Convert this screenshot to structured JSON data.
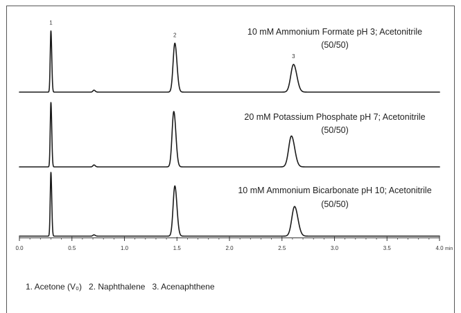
{
  "chart_data": {
    "type": "line",
    "xlim": [
      0,
      4.0
    ],
    "x_ticks": [
      "0.0",
      "0.5",
      "1.0",
      "1.5",
      "2.0",
      "2.5",
      "3.0",
      "3.5",
      "4.0"
    ],
    "xlabel": "min",
    "grid": false,
    "line_color": "#1a1a1a",
    "series": [
      {
        "label": [
          "10 mM Ammonium Formate pH 3; Acetonitrile",
          "(50/50)"
        ],
        "peaks": [
          {
            "t": 0.3,
            "h": 95
          },
          {
            "t": 0.71,
            "h": 3
          },
          {
            "t": 1.48,
            "h": 76
          },
          {
            "t": 2.61,
            "h": 43
          }
        ]
      },
      {
        "label": [
          "20 mM Potassium Phosphate pH 7; Acetonitrile",
          "(50/50)"
        ],
        "peaks": [
          {
            "t": 0.3,
            "h": 100
          },
          {
            "t": 0.71,
            "h": 3
          },
          {
            "t": 1.47,
            "h": 86
          },
          {
            "t": 2.59,
            "h": 48
          }
        ]
      },
      {
        "label": [
          "10 mM Ammonium Bicarbonate pH 10; Acetonitrile",
          "(50/50)"
        ],
        "peaks": [
          {
            "t": 0.3,
            "h": 99
          },
          {
            "t": 0.71,
            "h": 2
          },
          {
            "t": 1.48,
            "h": 78
          },
          {
            "t": 2.62,
            "h": 46
          }
        ]
      }
    ],
    "peak_labels": [
      {
        "text": "1",
        "t": 0.3
      },
      {
        "text": "2",
        "t": 1.48
      },
      {
        "text": "3",
        "t": 2.61
      }
    ]
  },
  "legend": {
    "items": [
      "1. Acetone (V₀)",
      "2. Naphthalene",
      "3. Acenaphthene"
    ]
  }
}
